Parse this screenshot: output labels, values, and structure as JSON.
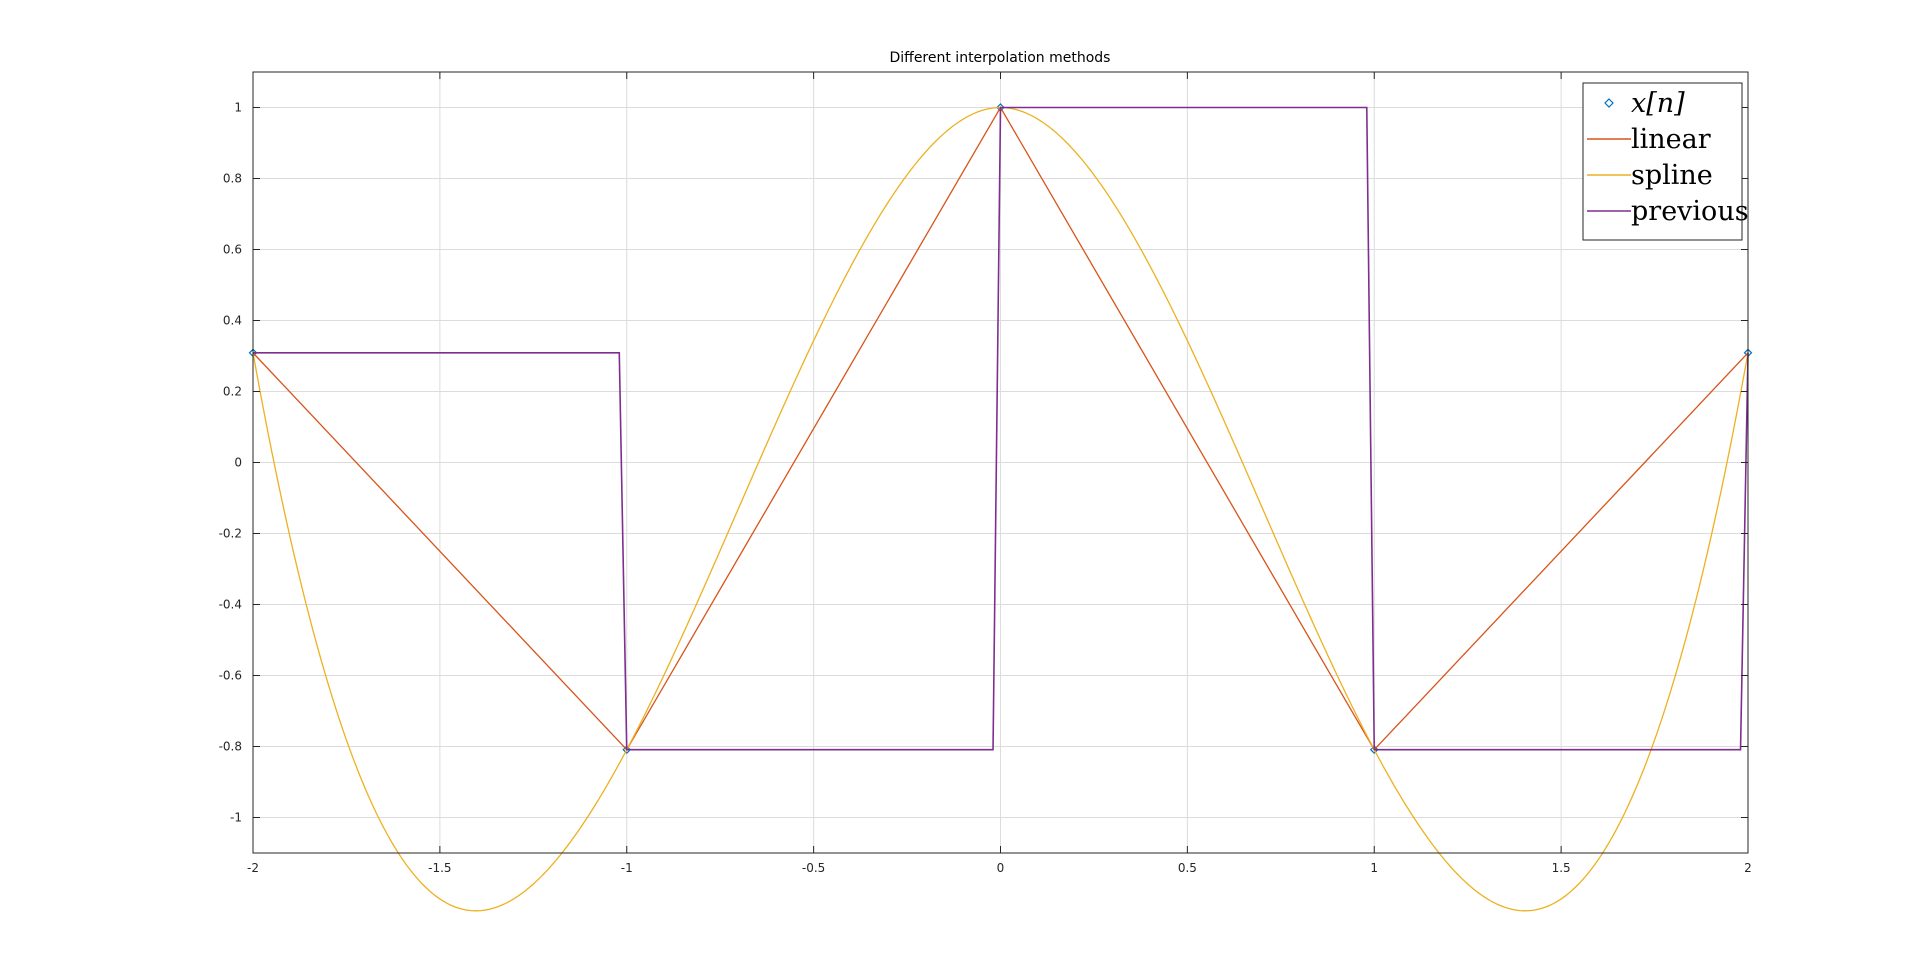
{
  "chart_data": {
    "type": "line",
    "title": "Different interpolation methods",
    "xlabel": "",
    "ylabel": "",
    "xlim": [
      -2,
      2
    ],
    "ylim": [
      -1.1,
      1.1
    ],
    "grid": true,
    "legend_position": "top-right",
    "x_ticks": [
      -2,
      -1.5,
      -1,
      -0.5,
      0,
      0.5,
      1,
      1.5,
      2
    ],
    "x_tick_labels": [
      "-2",
      "-1.5",
      "-1",
      "-0.5",
      "0",
      "0.5",
      "1",
      "1.5",
      "2"
    ],
    "y_ticks": [
      -1,
      -0.8,
      -0.6,
      -0.4,
      -0.2,
      0,
      0.2,
      0.4,
      0.6,
      0.8,
      1
    ],
    "y_tick_labels": [
      "-1",
      "-0.8",
      "-0.6",
      "-0.4",
      "-0.2",
      "0",
      "0.2",
      "0.4",
      "0.6",
      "0.8",
      "1"
    ],
    "samples": {
      "x": [
        -2,
        -1,
        0,
        1,
        2
      ],
      "y": [
        0.309,
        -0.809,
        1.0,
        -0.809,
        0.309
      ]
    },
    "series": [
      {
        "name": "x[n]",
        "kind": "markers",
        "color": "#0072BD",
        "x": [
          -2,
          -1,
          0,
          1,
          2
        ],
        "y": [
          0.309,
          -0.809,
          1.0,
          -0.809,
          0.309
        ]
      },
      {
        "name": "linear",
        "kind": "line",
        "color": "#D95319",
        "x": [
          -2,
          -1,
          0,
          1,
          2
        ],
        "y": [
          0.309,
          -0.809,
          1.0,
          -0.809,
          0.309
        ]
      },
      {
        "name": "spline",
        "kind": "spline",
        "color": "#EDB120",
        "x": [
          -2,
          -1,
          0,
          1,
          2
        ],
        "y": [
          0.309,
          -0.809,
          1.0,
          -0.809,
          0.309
        ]
      },
      {
        "name": "previous",
        "kind": "step",
        "color": "#7E2F8E",
        "x": [
          -2,
          -1,
          0,
          1,
          2
        ],
        "y": [
          0.309,
          -0.809,
          1.0,
          -0.809,
          0.309
        ]
      }
    ]
  },
  "legend": {
    "entries": [
      {
        "label": "x[n]",
        "italic": true
      },
      {
        "label": "linear",
        "italic": false
      },
      {
        "label": "spline",
        "italic": false
      },
      {
        "label": "previous",
        "italic": false
      }
    ]
  },
  "colors": {
    "axis": "#262626",
    "grid": "#dcdcdc"
  }
}
